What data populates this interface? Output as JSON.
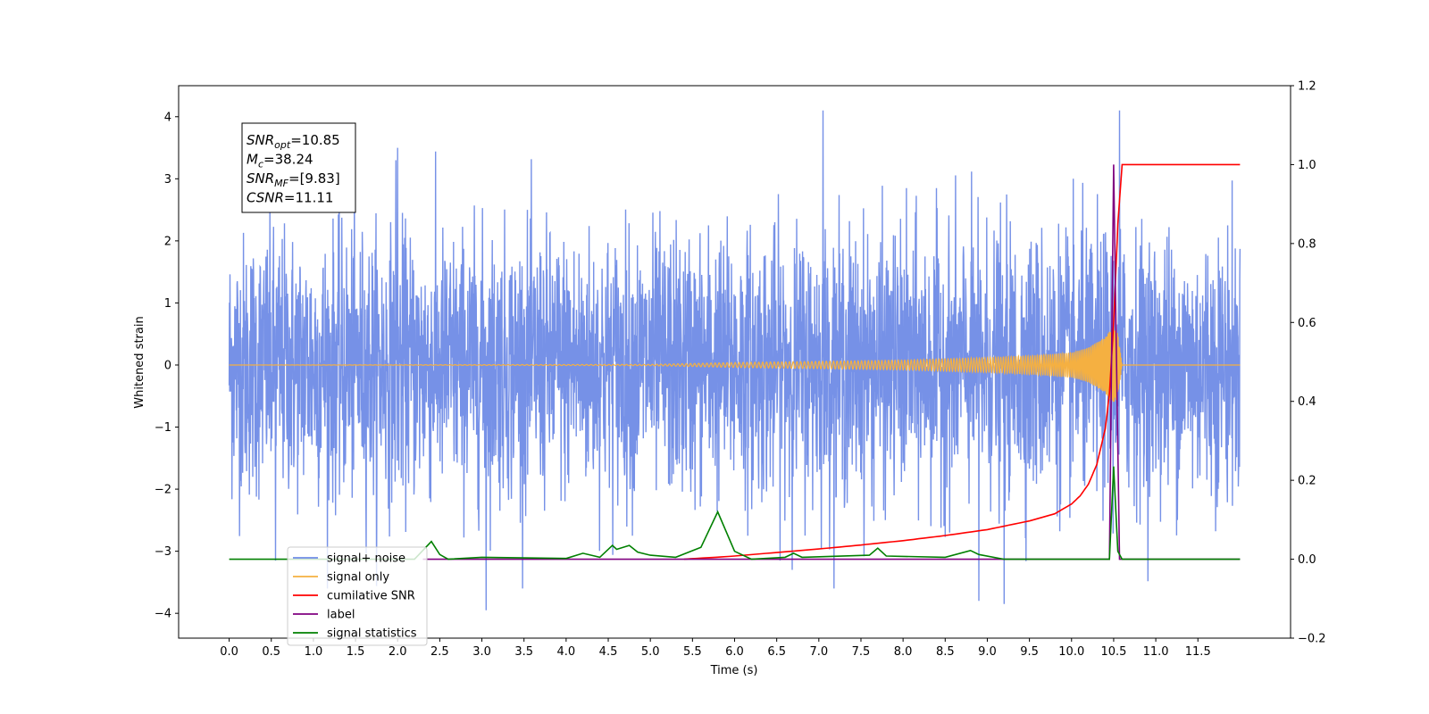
{
  "chart_data": {
    "type": "line",
    "xlabel": "Time (s)",
    "ylabel": "Whitened strain",
    "xlim": [
      -0.6,
      12.6
    ],
    "ylim": [
      -4.4,
      4.5
    ],
    "ylim_right": [
      -0.2,
      1.2
    ],
    "x_ticks": [
      0.0,
      0.5,
      1.0,
      1.5,
      2.0,
      2.5,
      3.0,
      3.5,
      4.0,
      4.5,
      5.0,
      5.5,
      6.0,
      6.5,
      7.0,
      7.5,
      8.0,
      8.5,
      9.0,
      9.5,
      10.0,
      10.5,
      11.0,
      11.5
    ],
    "x_tick_labels": [
      "0.0",
      "0.5",
      "1.0",
      "1.5",
      "2.0",
      "2.5",
      "3.0",
      "3.5",
      "4.0",
      "4.5",
      "5.0",
      "5.5",
      "6.0",
      "6.5",
      "7.0",
      "7.5",
      "8.0",
      "8.5",
      "9.0",
      "9.5",
      "10.0",
      "10.5",
      "11.0",
      "11.5"
    ],
    "y_ticks": [
      -4,
      -3,
      -2,
      -1,
      0,
      1,
      2,
      3,
      4
    ],
    "y_tick_labels": [
      "−4",
      "−3",
      "−2",
      "−1",
      "0",
      "1",
      "2",
      "3",
      "4"
    ],
    "y_right_ticks": [
      -0.2,
      0.0,
      0.2,
      0.4,
      0.6,
      0.8,
      1.0,
      1.2
    ],
    "y_right_tick_labels": [
      "−0.2",
      "0.0",
      "0.2",
      "0.4",
      "0.6",
      "0.8",
      "1.0",
      "1.2"
    ],
    "grid": false,
    "legend_placement": "lower-left",
    "annotation": {
      "lines": [
        {
          "base": "SNR",
          "sub": "opt",
          "value": "=10.85"
        },
        {
          "base": "M",
          "sub": "c",
          "value": "=38.24"
        },
        {
          "base": "SNR",
          "sub": "MF",
          "value": "=[9.83]"
        },
        {
          "base": "CSNR",
          "sub": "",
          "value": "=11.11"
        }
      ]
    },
    "series": [
      {
        "name": "signal+ noise",
        "axis": "left",
        "color": "#6f8be6",
        "x_range": [
          0.0,
          12.0
        ],
        "envelope": "random noise, approx ±2.3 typical, peaks to ±4.1",
        "notable_peaks": [
          [
            1.98,
            3.3
          ],
          [
            2.0,
            3.5
          ],
          [
            7.05,
            4.1
          ],
          [
            10.57,
            4.1
          ],
          [
            3.05,
            -3.95
          ],
          [
            9.2,
            -3.85
          ],
          [
            0.55,
            -3.15
          ],
          [
            8.9,
            -3.8
          ]
        ]
      },
      {
        "name": "signal only",
        "axis": "left",
        "color": "#f5b041",
        "x": [
          0.0,
          5.0,
          6.0,
          7.0,
          8.0,
          9.0,
          9.5,
          10.0,
          10.2,
          10.4,
          10.5,
          10.55,
          10.6,
          12.0
        ],
        "amplitude": [
          0.0,
          0.01,
          0.04,
          0.06,
          0.08,
          0.12,
          0.15,
          0.2,
          0.28,
          0.45,
          0.65,
          0.5,
          0.0,
          0.0
        ]
      },
      {
        "name": "cumilative SNR",
        "axis": "right",
        "color": "#ff0000",
        "x": [
          5.4,
          6.0,
          6.5,
          7.0,
          7.5,
          8.0,
          8.5,
          9.0,
          9.5,
          9.8,
          10.0,
          10.1,
          10.2,
          10.3,
          10.4,
          10.45,
          10.5,
          10.55,
          10.6,
          12.0
        ],
        "y": [
          0.0,
          0.008,
          0.017,
          0.026,
          0.036,
          0.047,
          0.06,
          0.075,
          0.097,
          0.115,
          0.14,
          0.16,
          0.19,
          0.24,
          0.33,
          0.42,
          0.6,
          0.85,
          1.0,
          1.0
        ]
      },
      {
        "name": "label",
        "axis": "right",
        "color": "#800080",
        "x": [
          2.3,
          10.45,
          10.5,
          10.53,
          10.57,
          10.62,
          12.0
        ],
        "y": [
          0.0,
          0.0,
          1.0,
          0.55,
          0.0,
          0.0,
          0.0
        ]
      },
      {
        "name": "signal statistics",
        "axis": "right",
        "color": "#008000",
        "x": [
          0.0,
          2.2,
          2.4,
          2.5,
          2.6,
          3.0,
          4.0,
          4.2,
          4.4,
          4.55,
          4.6,
          4.75,
          4.85,
          5.0,
          5.3,
          5.6,
          5.8,
          6.0,
          6.2,
          6.6,
          6.7,
          6.8,
          7.6,
          7.7,
          7.8,
          8.5,
          8.8,
          8.9,
          9.2,
          10.45,
          10.5,
          10.55,
          10.6,
          12.0
        ],
        "y": [
          0.0,
          0.0,
          0.045,
          0.012,
          0.0,
          0.005,
          0.002,
          0.015,
          0.005,
          0.035,
          0.025,
          0.035,
          0.018,
          0.01,
          0.005,
          0.03,
          0.12,
          0.02,
          0.0,
          0.005,
          0.015,
          0.005,
          0.01,
          0.028,
          0.008,
          0.005,
          0.022,
          0.012,
          0.0,
          0.0,
          0.235,
          0.02,
          0.0,
          0.0
        ]
      }
    ],
    "legend": {
      "entries": [
        {
          "label": "signal+ noise",
          "color": "#6f8be6"
        },
        {
          "label": "signal only",
          "color": "#f5b041"
        },
        {
          "label": "cumilative SNR",
          "color": "#ff0000"
        },
        {
          "label": "label",
          "color": "#800080"
        },
        {
          "label": "signal statistics",
          "color": "#008000"
        }
      ]
    }
  }
}
